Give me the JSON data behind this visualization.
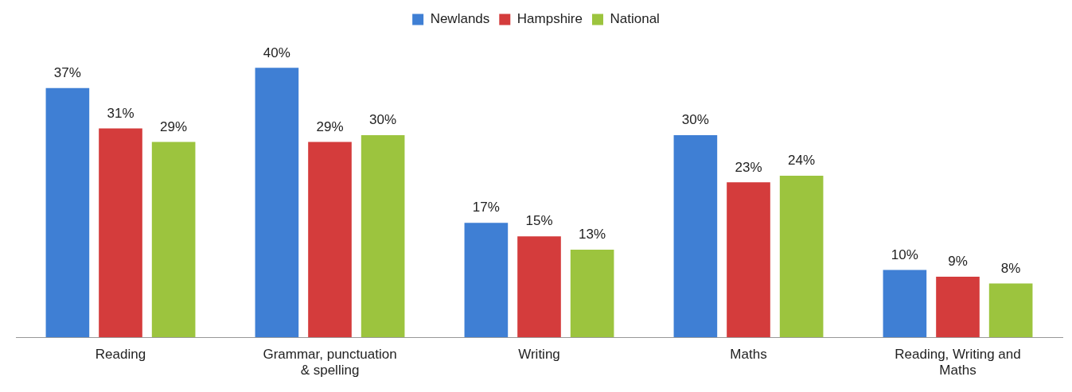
{
  "chart_data": {
    "type": "bar",
    "categories": [
      "Reading",
      "Grammar, punctuation & spelling",
      "Writing",
      "Maths",
      "Reading, Writing and Maths"
    ],
    "series": [
      {
        "name": "Newlands",
        "color": "#3f7fd4",
        "values": [
          37,
          40,
          17,
          30,
          10
        ],
        "value_labels": [
          "37%",
          "40%",
          "17%",
          "30%",
          "10%"
        ]
      },
      {
        "name": "Hampshire",
        "color": "#d43c3c",
        "values": [
          31,
          29,
          15,
          23,
          9
        ],
        "value_labels": [
          "31%",
          "29%",
          "15%",
          "23%",
          "9%"
        ]
      },
      {
        "name": "National",
        "color": "#9cc43e",
        "values": [
          29,
          30,
          13,
          24,
          8
        ],
        "value_labels": [
          "29%",
          "30%",
          "13%",
          "24%",
          "8%"
        ]
      }
    ],
    "legend": "top",
    "grid": false,
    "tick_labels": "x"
  }
}
